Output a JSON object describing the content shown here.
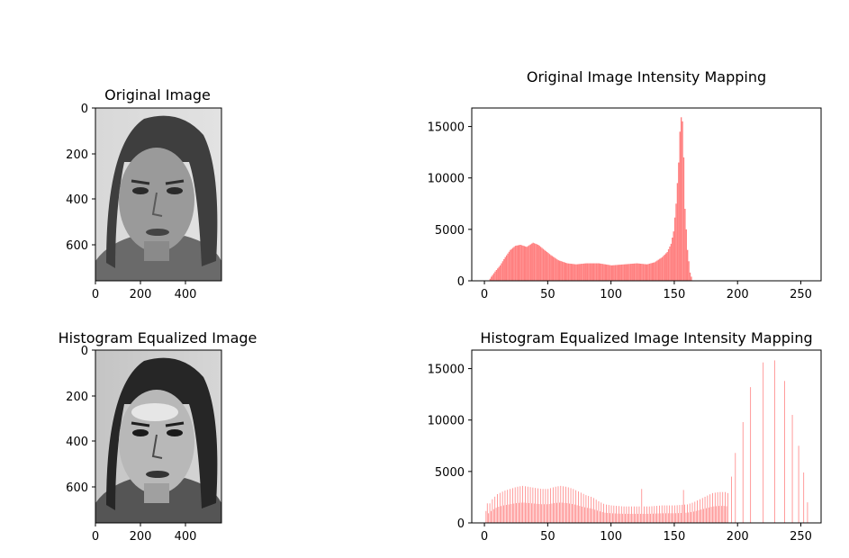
{
  "colors": {
    "bar": "#ff7f7f",
    "axes": "#000000",
    "background": "#ffffff"
  },
  "chart_data": [
    {
      "type": "image",
      "title": "Original Image",
      "xticks": [
        "0",
        "200",
        "400"
      ],
      "yticks": [
        "0",
        "200",
        "400",
        "600"
      ],
      "xlim": [
        0,
        562
      ],
      "ylim": [
        762,
        0
      ]
    },
    {
      "type": "bar",
      "title": "Original Image Intensity Mapping",
      "xlim": [
        -10,
        266
      ],
      "ylim": [
        0,
        16800
      ],
      "xticks": [
        "0",
        "50",
        "100",
        "150",
        "200",
        "250"
      ],
      "yticks": [
        "0",
        "5000",
        "10000",
        "15000"
      ],
      "profile": [
        [
          0,
          0
        ],
        [
          3,
          0
        ],
        [
          5,
          400
        ],
        [
          8,
          900
        ],
        [
          12,
          1500
        ],
        [
          16,
          2300
        ],
        [
          20,
          3000
        ],
        [
          24,
          3400
        ],
        [
          28,
          3500
        ],
        [
          33,
          3300
        ],
        [
          38,
          3700
        ],
        [
          42,
          3500
        ],
        [
          47,
          3000
        ],
        [
          52,
          2500
        ],
        [
          58,
          2000
        ],
        [
          65,
          1700
        ],
        [
          72,
          1600
        ],
        [
          80,
          1700
        ],
        [
          90,
          1700
        ],
        [
          100,
          1500
        ],
        [
          110,
          1600
        ],
        [
          120,
          1700
        ],
        [
          128,
          1600
        ],
        [
          134,
          1800
        ],
        [
          140,
          2300
        ],
        [
          144,
          2800
        ],
        [
          147,
          3600
        ],
        [
          149,
          4800
        ],
        [
          151,
          7500
        ],
        [
          153,
          11500
        ],
        [
          154,
          14500
        ],
        [
          155,
          15900
        ],
        [
          156,
          15500
        ],
        [
          157,
          12000
        ],
        [
          158,
          7000
        ],
        [
          160,
          3000
        ],
        [
          162,
          800
        ],
        [
          164,
          0
        ],
        [
          256,
          0
        ]
      ]
    },
    {
      "type": "image",
      "title": "Histogram Equalized Image",
      "xticks": [
        "0",
        "200",
        "400"
      ],
      "yticks": [
        "0",
        "200",
        "400",
        "600"
      ],
      "xlim": [
        0,
        562
      ],
      "ylim": [
        762,
        0
      ]
    },
    {
      "type": "bar",
      "title": "Histogram Equalized Image Intensity Mapping",
      "xlim": [
        -10,
        266
      ],
      "ylim": [
        0,
        16800
      ],
      "xticks": [
        "0",
        "50",
        "100",
        "150",
        "200",
        "250"
      ],
      "yticks": [
        "0",
        "5000",
        "10000",
        "15000"
      ],
      "profile": [
        [
          0,
          0
        ],
        [
          1,
          2100
        ],
        [
          3,
          1700
        ],
        [
          6,
          2300
        ],
        [
          10,
          2800
        ],
        [
          15,
          3100
        ],
        [
          20,
          3300
        ],
        [
          25,
          3500
        ],
        [
          30,
          3600
        ],
        [
          35,
          3500
        ],
        [
          40,
          3400
        ],
        [
          45,
          3300
        ],
        [
          50,
          3300
        ],
        [
          55,
          3500
        ],
        [
          60,
          3600
        ],
        [
          65,
          3500
        ],
        [
          70,
          3300
        ],
        [
          75,
          3000
        ],
        [
          80,
          2700
        ],
        [
          85,
          2500
        ],
        [
          90,
          2100
        ],
        [
          95,
          1800
        ],
        [
          100,
          1700
        ],
        [
          110,
          1600
        ],
        [
          120,
          1600
        ],
        [
          130,
          1600
        ],
        [
          140,
          1700
        ],
        [
          150,
          1700
        ],
        [
          160,
          1800
        ],
        [
          165,
          2000
        ],
        [
          170,
          2300
        ],
        [
          175,
          2600
        ],
        [
          180,
          2900
        ],
        [
          185,
          3000
        ],
        [
          190,
          3000
        ],
        [
          192,
          2900
        ],
        [
          193,
          0
        ],
        [
          256,
          0
        ]
      ],
      "spikes": [
        [
          124,
          3300
        ],
        [
          157,
          3200
        ],
        [
          195,
          4500
        ],
        [
          198,
          6800
        ],
        [
          204,
          9800
        ],
        [
          210,
          13200
        ],
        [
          220,
          15600
        ],
        [
          229,
          15800
        ],
        [
          237,
          13800
        ],
        [
          243,
          10500
        ],
        [
          248,
          7500
        ],
        [
          252,
          4900
        ],
        [
          255,
          2000
        ]
      ]
    }
  ]
}
